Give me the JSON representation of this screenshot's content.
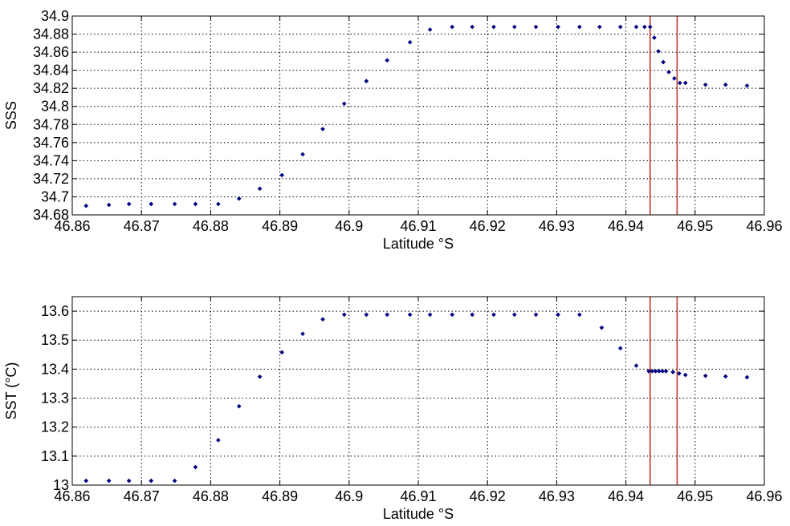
{
  "chart_data": [
    {
      "type": "scatter",
      "xlabel": "Latitude °S",
      "ylabel": "SSS",
      "xlim": [
        46.86,
        46.96
      ],
      "ylim": [
        34.68,
        34.9
      ],
      "grid": true,
      "x_ticks": [
        "46.86",
        "46.87",
        "46.88",
        "46.89",
        "46.9",
        "46.91",
        "46.92",
        "46.93",
        "46.94",
        "46.95",
        "46.96"
      ],
      "y_ticks": [
        "34.68",
        "34.7",
        "34.72",
        "34.74",
        "34.76",
        "34.78",
        "34.8",
        "34.82",
        "34.84",
        "34.86",
        "34.88",
        "34.9"
      ],
      "marker_color": "#00007f",
      "vline_color": "#c0392b",
      "vlines": [
        46.9435,
        46.9474
      ],
      "series": [
        {
          "x": [
            46.862,
            46.8653,
            46.8682,
            46.8714,
            46.8748,
            46.8778,
            46.8811,
            46.8841,
            46.8871,
            46.8903,
            46.8933,
            46.8962,
            46.8993,
            46.9025,
            46.9055,
            46.9088,
            46.9117,
            46.9149,
            46.9178,
            46.9209,
            46.9239,
            46.927,
            46.9302,
            46.9333,
            46.9362,
            46.9392,
            46.9415,
            46.9427,
            46.9435,
            46.9441,
            46.9447,
            46.9454,
            46.9462,
            46.947,
            46.9478,
            46.9486,
            46.9515,
            46.9544,
            46.9575
          ],
          "y": [
            34.69,
            34.691,
            34.692,
            34.692,
            34.692,
            34.692,
            34.692,
            34.698,
            34.709,
            34.724,
            34.747,
            34.775,
            34.803,
            34.828,
            34.851,
            34.871,
            34.885,
            34.888,
            34.888,
            34.888,
            34.888,
            34.888,
            34.888,
            34.888,
            34.888,
            34.888,
            34.888,
            34.888,
            34.888,
            34.876,
            34.861,
            34.849,
            34.838,
            34.831,
            34.826,
            34.826,
            34.824,
            34.824,
            34.823
          ]
        }
      ]
    },
    {
      "type": "scatter",
      "xlabel": "Latitude °S",
      "ylabel": "SST (°C)",
      "xlim": [
        46.86,
        46.96
      ],
      "ylim": [
        13.0,
        13.65
      ],
      "grid": true,
      "x_ticks": [
        "46.86",
        "46.87",
        "46.88",
        "46.89",
        "46.9",
        "46.91",
        "46.92",
        "46.93",
        "46.94",
        "46.95",
        "46.96"
      ],
      "y_ticks": [
        "13",
        "13.1",
        "13.2",
        "13.3",
        "13.4",
        "13.5",
        "13.6"
      ],
      "y_tick_values": [
        13.0,
        13.1,
        13.2,
        13.3,
        13.4,
        13.5,
        13.6
      ],
      "marker_color": "#00007f",
      "vline_color": "#c0392b",
      "vlines": [
        46.9435,
        46.9474
      ],
      "series": [
        {
          "x": [
            46.862,
            46.8653,
            46.8682,
            46.8714,
            46.8748,
            46.8778,
            46.8811,
            46.8841,
            46.8871,
            46.8903,
            46.8933,
            46.8962,
            46.8993,
            46.9025,
            46.9055,
            46.9088,
            46.9117,
            46.9149,
            46.9178,
            46.9209,
            46.9239,
            46.927,
            46.9302,
            46.9333,
            46.9365,
            46.9392,
            46.9415,
            46.9433,
            46.9438,
            46.9443,
            46.9448,
            46.9453,
            46.9458,
            46.9468,
            46.9477,
            46.9486,
            46.9515,
            46.9544,
            46.9575
          ],
          "y": [
            13.015,
            13.015,
            13.015,
            13.015,
            13.015,
            13.062,
            13.155,
            13.272,
            13.374,
            13.458,
            13.522,
            13.572,
            13.588,
            13.588,
            13.588,
            13.588,
            13.588,
            13.588,
            13.588,
            13.588,
            13.588,
            13.588,
            13.588,
            13.588,
            13.543,
            13.472,
            13.412,
            13.393,
            13.393,
            13.393,
            13.393,
            13.393,
            13.393,
            13.39,
            13.385,
            13.38,
            13.377,
            13.375,
            13.372
          ]
        }
      ]
    }
  ]
}
